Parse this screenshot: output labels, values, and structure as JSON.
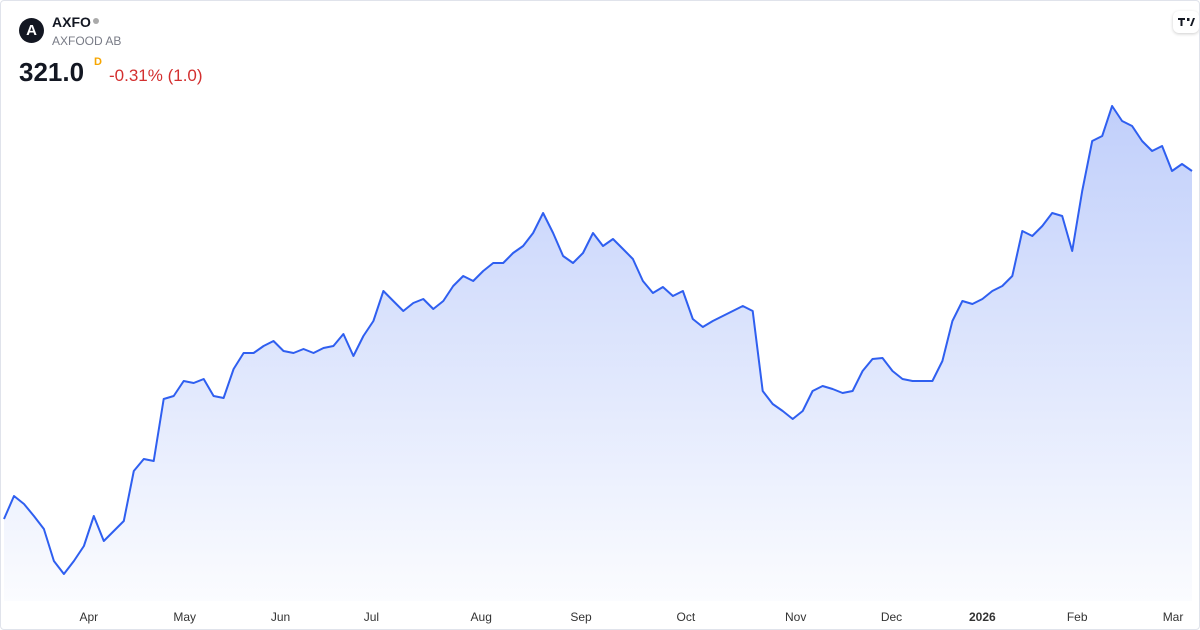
{
  "header": {
    "logo": "A",
    "symbol": "AXFO",
    "name": "AXFOOD AB",
    "price": "321.0",
    "price_flag": "D",
    "change": "-0.31% (1.0)"
  },
  "chart_data": {
    "type": "area",
    "color": "#2f5ff0",
    "values": [
      251.4,
      256,
      254.4,
      252,
      249.4,
      243,
      240.4,
      243,
      246,
      252,
      247,
      249,
      251,
      261,
      263.4,
      263,
      275.4,
      276,
      279,
      278.6,
      279.4,
      276,
      275.6,
      281.4,
      284.6,
      284.6,
      286,
      287,
      285,
      284.6,
      285.4,
      284.6,
      285.6,
      286,
      288.4,
      284,
      288,
      291,
      297,
      295,
      293,
      294.6,
      295.4,
      293.4,
      295,
      298,
      300,
      299,
      301,
      302.6,
      302.6,
      304.6,
      306,
      308.6,
      312.6,
      308.6,
      304,
      302.6,
      304.6,
      308.6,
      306,
      307.4,
      305.4,
      303.4,
      299,
      296.6,
      297.8,
      296,
      297,
      291.4,
      289.8,
      291,
      292,
      293,
      294,
      293,
      277,
      274.4,
      273,
      271.4,
      273,
      277,
      278,
      277.4,
      276.6,
      277,
      281,
      283.4,
      283.6,
      281,
      279.4,
      279,
      279,
      279,
      283,
      291,
      295,
      294.4,
      295.4,
      297,
      298,
      300,
      309,
      308,
      310,
      312.6,
      312,
      305,
      317,
      327,
      328,
      334,
      331,
      330,
      327,
      325,
      326,
      321,
      322.4,
      321
    ],
    "xlim": [
      0,
      119
    ],
    "ylim": [
      235,
      355
    ],
    "xticks": [
      {
        "value": 8.5,
        "label": "Apr"
      },
      {
        "value": 18.1,
        "label": "May"
      },
      {
        "value": 27.7,
        "label": "Jun"
      },
      {
        "value": 36.8,
        "label": "Jul"
      },
      {
        "value": 47.8,
        "label": "Aug"
      },
      {
        "value": 57.8,
        "label": "Sep"
      },
      {
        "value": 68.3,
        "label": "Oct"
      },
      {
        "value": 79.3,
        "label": "Nov"
      },
      {
        "value": 88.9,
        "label": "Dec"
      },
      {
        "value": 98,
        "label": "2026"
      },
      {
        "value": 107.5,
        "label": "Feb"
      },
      {
        "value": 117.1,
        "label": "Mar"
      }
    ]
  }
}
